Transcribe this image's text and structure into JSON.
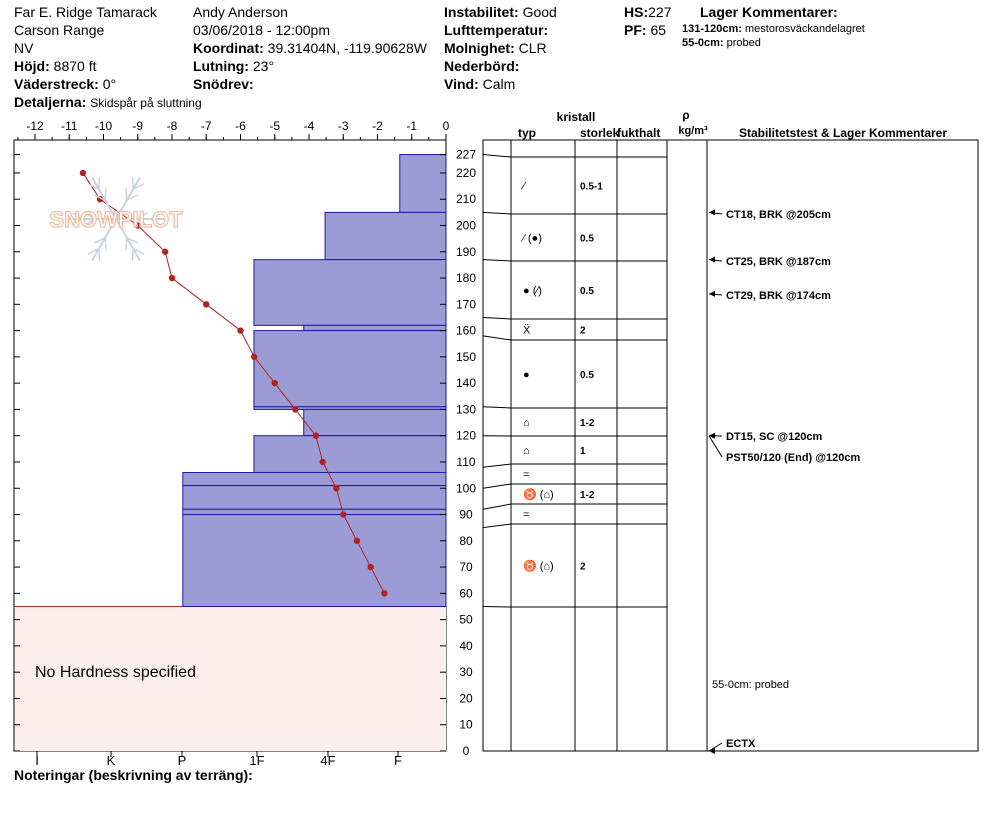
{
  "header": {
    "location": "Far E. Ridge Tamarack",
    "range": "Carson Range",
    "state": "NV",
    "elevation_label": "Höjd:",
    "elevation": "8870 ft",
    "aspect_label": "Väderstreck:",
    "aspect": "0°",
    "details_label": "Detaljerna:",
    "details": "Skidspår på sluttning",
    "observer": "Andy Anderson",
    "datetime": "03/06/2018 - 12:00pm",
    "coord_label": "Koordinat:",
    "coord": "39.31404N, -119.90628W",
    "slope_label": "Lutning:",
    "slope": "23°",
    "drift_label": "Snödrev:",
    "drift": "",
    "instability_label": "Instabilitet:",
    "instability": "Good",
    "airtemp_label": "Lufttemperatur:",
    "airtemp": "",
    "sky_label": "Molnighet:",
    "sky": "CLR",
    "precip_label": "Nederbörd:",
    "precip": "",
    "wind_label": "Vind:",
    "wind": "Calm",
    "hs_label": "HS:",
    "hs": "227",
    "pf_label": "PF:",
    "pf": "65",
    "layer_comments_label": "Lager Kommentarer:",
    "layer_comment_1_range": "131-120cm:",
    "layer_comment_1_text": "mestorosväckandelagret",
    "layer_comment_2_range": "55-0cm:",
    "layer_comment_2_text": "probed"
  },
  "watermark": "SNOWPILOT",
  "no_hardness_text": "No Hardness specified",
  "notes_label": "Noteringar (beskrivning av terräng):",
  "columns": {
    "crystal": "kristall",
    "type": "typ",
    "size": "storlek",
    "moisture": "fukthalt",
    "rho": "ρ",
    "density_unit": "kg/m³",
    "stability": "Stabilitetstest & Lager Kommentarer"
  },
  "layers_table": [
    {
      "top": 227,
      "bottom": 205,
      "type": "⁄",
      "size": "0.5-1"
    },
    {
      "top": 205,
      "bottom": 187,
      "type": "⁄ (●)",
      "size": "0.5"
    },
    {
      "top": 187,
      "bottom": 165,
      "type": "● (⁄)",
      "size": "0.5"
    },
    {
      "top": 165,
      "bottom": 158,
      "type": "Ẍ",
      "size": "2"
    },
    {
      "top": 158,
      "bottom": 131,
      "type": "●",
      "size": "0.5"
    },
    {
      "top": 131,
      "bottom": 120,
      "type": "⌂",
      "size": "1-2"
    },
    {
      "top": 120,
      "bottom": 108,
      "type": "⌂",
      "size": "1"
    },
    {
      "top": 108,
      "bottom": 100,
      "type": "=",
      "size": ""
    },
    {
      "top": 100,
      "bottom": 92,
      "type": "♉ (⌂)",
      "size": "1-2"
    },
    {
      "top": 92,
      "bottom": 85,
      "type": "=",
      "size": ""
    },
    {
      "top": 85,
      "bottom": 55,
      "type": "♉ (⌂)",
      "size": "2"
    }
  ],
  "stability_tests": [
    {
      "depth": 205,
      "text": "CT18, BRK @205cm"
    },
    {
      "depth": 187,
      "text": "CT25, BRK @187cm"
    },
    {
      "depth": 174,
      "text": "CT29, BRK @174cm"
    },
    {
      "depth": 120,
      "text": "DT15, SC @120cm"
    },
    {
      "depth": 120,
      "text": "PST50/120 (End) @120cm"
    },
    {
      "depth": 27,
      "text": "55-0cm:  probed"
    },
    {
      "depth": 0,
      "text": "ECTX"
    }
  ],
  "chart_data": {
    "type": "bar",
    "title": "",
    "xlabel": "",
    "ylabel": "",
    "ylim": [
      0,
      227
    ],
    "y_ticks": [
      0,
      10,
      20,
      30,
      40,
      50,
      60,
      70,
      80,
      90,
      100,
      110,
      120,
      130,
      140,
      150,
      160,
      170,
      180,
      190,
      200,
      210,
      220,
      227
    ],
    "temp_axis": {
      "range": [
        -12,
        0
      ],
      "ticks": [
        "-12",
        "-11",
        "-10",
        "-9",
        "-8",
        "-7",
        "-6",
        "-5",
        "-4",
        "-3",
        "-2",
        "-1",
        "0"
      ]
    },
    "hardness_axis": {
      "labels": [
        "I",
        "K",
        "P",
        "1F",
        "4F",
        "F"
      ]
    },
    "hardness_profile": [
      {
        "top": 227,
        "bottom": 205,
        "hardness_index": 0.65
      },
      {
        "top": 205,
        "bottom": 187,
        "hardness_index": 1.7
      },
      {
        "top": 187,
        "bottom": 162,
        "hardness_index": 2.7
      },
      {
        "top": 162,
        "bottom": 160,
        "hardness_index": 2.0
      },
      {
        "top": 160,
        "bottom": 131,
        "hardness_index": 2.7
      },
      {
        "top": 131,
        "bottom": 130,
        "hardness_index": 2.7
      },
      {
        "top": 130,
        "bottom": 120,
        "hardness_index": 2.0
      },
      {
        "top": 120,
        "bottom": 106,
        "hardness_index": 2.7
      },
      {
        "top": 106,
        "bottom": 101,
        "hardness_index": 3.7
      },
      {
        "top": 101,
        "bottom": 92,
        "hardness_index": 3.7
      },
      {
        "top": 92,
        "bottom": 90,
        "hardness_index": 3.7
      },
      {
        "top": 90,
        "bottom": 55,
        "hardness_index": 3.7
      }
    ],
    "temperature_profile": [
      {
        "depth": 220,
        "temp": -10.6
      },
      {
        "depth": 210,
        "temp": -10.1
      },
      {
        "depth": 200,
        "temp": -9.0
      },
      {
        "depth": 190,
        "temp": -8.2
      },
      {
        "depth": 180,
        "temp": -8.0
      },
      {
        "depth": 170,
        "temp": -7.0
      },
      {
        "depth": 160,
        "temp": -6.0
      },
      {
        "depth": 150,
        "temp": -5.6
      },
      {
        "depth": 140,
        "temp": -5.0
      },
      {
        "depth": 130,
        "temp": -4.4
      },
      {
        "depth": 120,
        "temp": -3.8
      },
      {
        "depth": 110,
        "temp": -3.6
      },
      {
        "depth": 100,
        "temp": -3.2
      },
      {
        "depth": 90,
        "temp": -3.0
      },
      {
        "depth": 80,
        "temp": -2.6
      },
      {
        "depth": 70,
        "temp": -2.2
      },
      {
        "depth": 60,
        "temp": -1.8
      }
    ],
    "colors": {
      "hardness_fill": "#9b9bd6",
      "hardness_edge": "#1a1aa6",
      "temperature": "#b22222",
      "no_hardness_fill": "#fdeeee",
      "no_hardness_edge": "#b03030"
    }
  }
}
